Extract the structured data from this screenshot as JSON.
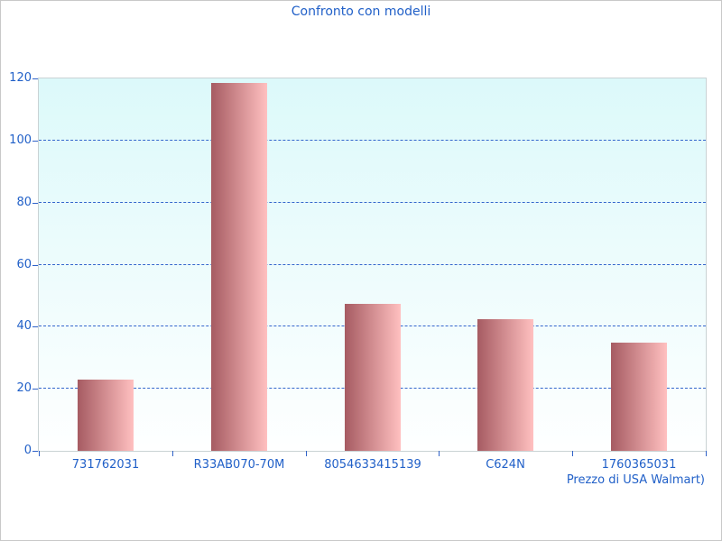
{
  "chart_data": {
    "type": "bar",
    "title": "Confronto con modelli",
    "categories": [
      "731762031",
      "R33AB070-70M",
      "8054633415139",
      "C624N",
      "1760365031"
    ],
    "values": [
      23,
      118.5,
      47.5,
      42.5,
      35
    ],
    "xlabel": "Prezzo di USA Walmart)",
    "ylabel": "",
    "ylim": [
      0,
      120
    ],
    "yticks": [
      0,
      20,
      40,
      60,
      80,
      100,
      120
    ],
    "grid": "horizontal dashed lines at 20,40,60,80,100",
    "legend": "none",
    "colors": {
      "text": "#2160c8",
      "tick": "#2f62c8",
      "gridline": "#3366cc",
      "bar_gradient_left": "#a65b62",
      "bar_gradient_right": "#ffc0c0",
      "plot_bg_top": "#dcf9fa",
      "plot_bg_bottom": "#feffff",
      "plot_border": "#c9d2d4"
    }
  }
}
